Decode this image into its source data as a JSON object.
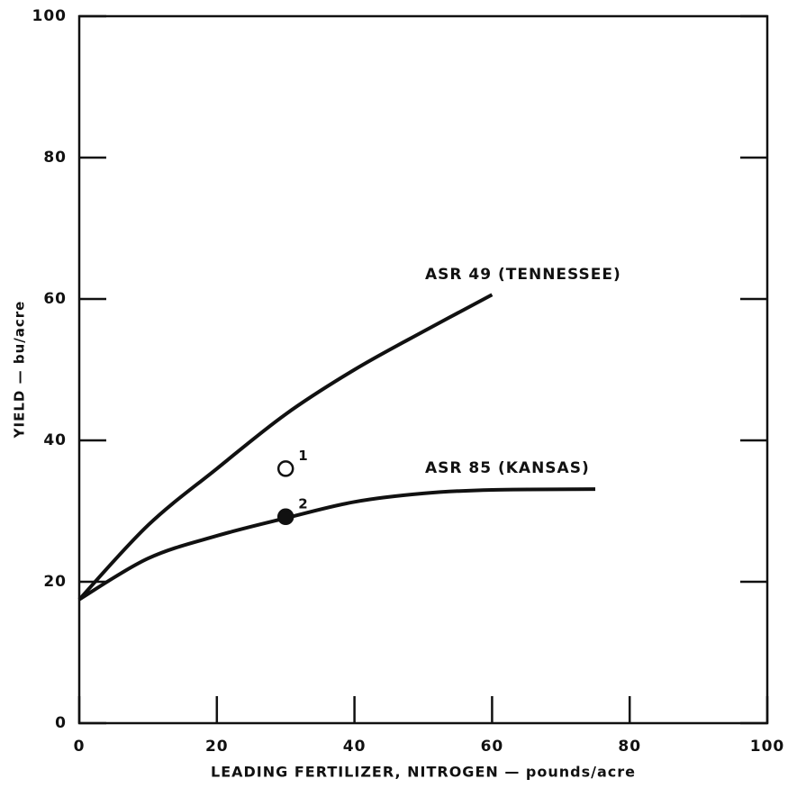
{
  "chart_data": {
    "type": "line",
    "xlabel": "LEADING FERTILIZER, NITROGEN — pounds/acre",
    "ylabel": "YIELD — bu/acre",
    "xlim": [
      0,
      100
    ],
    "xticks": [
      0,
      20,
      40,
      60,
      80,
      100
    ],
    "ylim": [
      0,
      100
    ],
    "yticks": [
      0,
      20,
      40,
      60,
      80,
      100
    ],
    "series": [
      {
        "name": "ASR 49 (TENNESSEE)",
        "color": "#111111",
        "x": [
          0,
          10,
          20,
          30,
          40,
          50,
          60
        ],
        "values": [
          17.5,
          28,
          36,
          43.7,
          50,
          55.4,
          60.6
        ]
      },
      {
        "name": "ASR 85 (KANSAS)",
        "color": "#111111",
        "x": [
          0,
          10,
          20,
          30,
          40,
          50,
          60,
          75
        ],
        "values": [
          17.5,
          23.3,
          26.5,
          29,
          31.3,
          32.5,
          33,
          33.1
        ]
      }
    ],
    "points": [
      {
        "label": "1",
        "x": 30,
        "y": 36,
        "filled": false
      },
      {
        "label": "2",
        "x": 30,
        "y": 29.2,
        "filled": true
      }
    ]
  }
}
